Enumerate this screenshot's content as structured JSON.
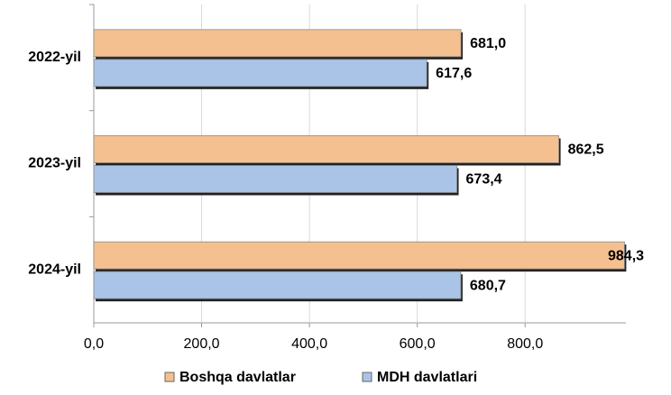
{
  "chart_data": {
    "type": "hbar",
    "categories": [
      "2022-yil",
      "2023-yil",
      "2024-yil"
    ],
    "series": [
      {
        "name": "Boshqa davlatlar",
        "color": "#f5c08f",
        "values": [
          681.0,
          862.5,
          984.3
        ],
        "value_labels": [
          "681,0",
          "862,5",
          "984,3"
        ]
      },
      {
        "name": "MDH davlatlari",
        "color": "#a9c4e6",
        "values": [
          617.6,
          673.4,
          680.7
        ],
        "value_labels": [
          "617,6",
          "673,4",
          "680,7"
        ]
      }
    ],
    "xlim": [
      0,
      987
    ],
    "xticks": [
      {
        "value": 0,
        "label": "0,0"
      },
      {
        "value": 200,
        "label": "200,0"
      },
      {
        "value": 400,
        "label": "400,0"
      },
      {
        "value": 600,
        "label": "600,0"
      },
      {
        "value": 800,
        "label": "800,0"
      }
    ],
    "grid": true,
    "legend": "bottom"
  }
}
